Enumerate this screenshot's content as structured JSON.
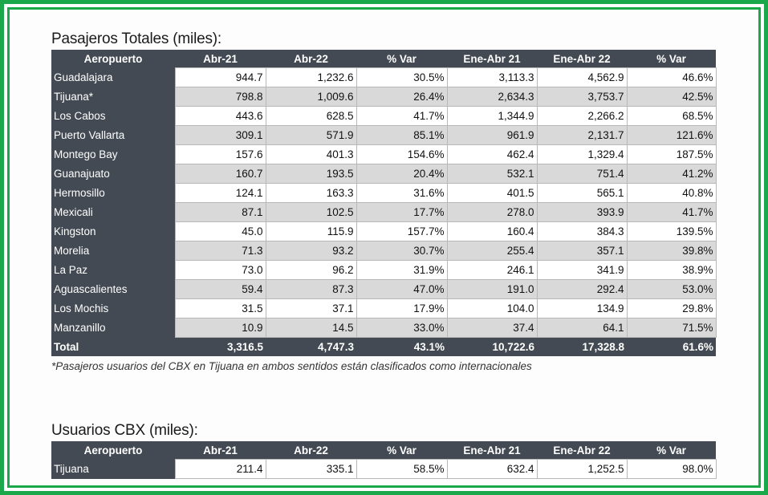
{
  "section1": {
    "title": "Pasajeros Totales (miles):",
    "headers": [
      "Aeropuerto",
      "Abr-21",
      "Abr-22",
      "% Var",
      "Ene-Abr 21",
      "Ene-Abr 22",
      "% Var"
    ],
    "rows": [
      [
        "Guadalajara",
        "944.7",
        "1,232.6",
        "30.5%",
        "3,113.3",
        "4,562.9",
        "46.6%"
      ],
      [
        "Tijuana*",
        "798.8",
        "1,009.6",
        "26.4%",
        "2,634.3",
        "3,753.7",
        "42.5%"
      ],
      [
        "Los Cabos",
        "443.6",
        "628.5",
        "41.7%",
        "1,344.9",
        "2,266.2",
        "68.5%"
      ],
      [
        "Puerto Vallarta",
        "309.1",
        "571.9",
        "85.1%",
        "961.9",
        "2,131.7",
        "121.6%"
      ],
      [
        "Montego Bay",
        "157.6",
        "401.3",
        "154.6%",
        "462.4",
        "1,329.4",
        "187.5%"
      ],
      [
        "Guanajuato",
        "160.7",
        "193.5",
        "20.4%",
        "532.1",
        "751.4",
        "41.2%"
      ],
      [
        "Hermosillo",
        "124.1",
        "163.3",
        "31.6%",
        "401.5",
        "565.1",
        "40.8%"
      ],
      [
        "Mexicali",
        "87.1",
        "102.5",
        "17.7%",
        "278.0",
        "393.9",
        "41.7%"
      ],
      [
        "Kingston",
        "45.0",
        "115.9",
        "157.7%",
        "160.4",
        "384.3",
        "139.5%"
      ],
      [
        "Morelia",
        "71.3",
        "93.2",
        "30.7%",
        "255.4",
        "357.1",
        "39.8%"
      ],
      [
        "La Paz",
        "73.0",
        "96.2",
        "31.9%",
        "246.1",
        "341.9",
        "38.9%"
      ],
      [
        "Aguascalientes",
        "59.4",
        "87.3",
        "47.0%",
        "191.0",
        "292.4",
        "53.0%"
      ],
      [
        "Los Mochis",
        "31.5",
        "37.1",
        "17.9%",
        "104.0",
        "134.9",
        "29.8%"
      ],
      [
        "Manzanillo",
        "10.9",
        "14.5",
        "33.0%",
        "37.4",
        "64.1",
        "71.5%"
      ]
    ],
    "total": [
      "Total",
      "3,316.5",
      "4,747.3",
      "43.1%",
      "10,722.6",
      "17,328.8",
      "61.6%"
    ],
    "footnote": "*Pasajeros usuarios del CBX en Tijuana en ambos sentidos están clasificados como internacionales"
  },
  "section2": {
    "title": "Usuarios CBX (miles):",
    "headers": [
      "Aeropuerto",
      "Abr-21",
      "Abr-22",
      "% Var",
      "Ene-Abr 21",
      "Ene-Abr 22",
      "% Var"
    ],
    "rows": [
      [
        "Tijuana",
        "211.4",
        "335.1",
        "58.5%",
        "632.4",
        "1,252.5",
        "98.0%"
      ]
    ]
  },
  "colors": {
    "frame": "#1aa84a",
    "header_bg": "#434a53",
    "alt_row": "#d9d9d9"
  }
}
